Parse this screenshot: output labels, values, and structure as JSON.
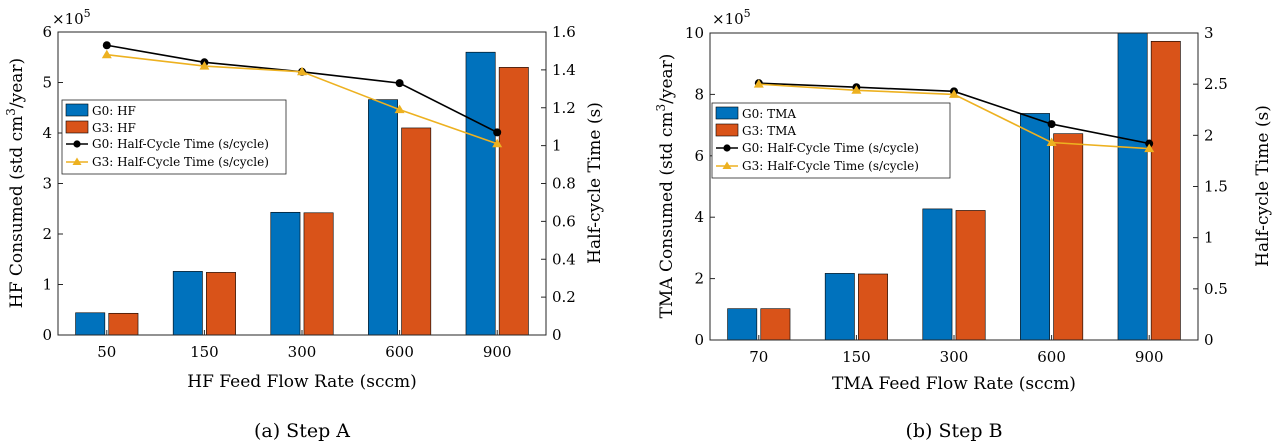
{
  "figure": {
    "colors": {
      "g0_bar": "#0072BD",
      "g3_bar": "#D95319",
      "g0_line": "#000000",
      "g3_line": "#EDB120"
    }
  },
  "chart_data": [
    {
      "type": "bar",
      "caption": "(a) Step A",
      "xlabel": "HF Feed Flow Rate (sccm)",
      "ylabel": "HF Consumed (std cm³/year)",
      "ylabel_parts": [
        "HF Consumed (std cm",
        "3",
        "/year)"
      ],
      "y_multiplier": "×10",
      "y_multiplier_exp": "5",
      "y2label": "Half-cycle Time (s)",
      "categories": [
        "50",
        "150",
        "300",
        "600",
        "900"
      ],
      "ylim": [
        0,
        6
      ],
      "yticks": [
        "0",
        "1",
        "2",
        "3",
        "4",
        "5",
        "6"
      ],
      "y2lim": [
        0,
        1.6
      ],
      "y2ticks": [
        "0",
        "0.2",
        "0.4",
        "0.6",
        "0.8",
        "1",
        "1.2",
        "1.4",
        "1.6"
      ],
      "legend_position": "center-left",
      "series": [
        {
          "name": "G0: HF",
          "kind": "bar",
          "axis": "left",
          "values": [
            0.44,
            1.26,
            2.43,
            4.66,
            5.6
          ]
        },
        {
          "name": "G3: HF",
          "kind": "bar",
          "axis": "left",
          "values": [
            0.43,
            1.24,
            2.42,
            4.1,
            5.3
          ]
        },
        {
          "name": "G0: Half-Cycle Time (s/cycle)",
          "kind": "line",
          "marker": "circle",
          "axis": "right",
          "values": [
            1.53,
            1.44,
            1.39,
            1.33,
            1.07
          ]
        },
        {
          "name": "G3: Half-Cycle Time (s/cycle)",
          "kind": "line",
          "marker": "triangle",
          "axis": "right",
          "values": [
            1.48,
            1.42,
            1.39,
            1.19,
            1.01
          ]
        }
      ]
    },
    {
      "type": "bar",
      "caption": "(b) Step B",
      "xlabel": "TMA Feed Flow Rate (sccm)",
      "ylabel": "TMA Consumed (std cm³/year)",
      "ylabel_parts": [
        "TMA Consumed (std cm",
        "3",
        "/year)"
      ],
      "y_multiplier": "×10",
      "y_multiplier_exp": "5",
      "y2label": "Half-cycle Time (s)",
      "categories": [
        "70",
        "150",
        "300",
        "600",
        "900"
      ],
      "ylim": [
        0,
        10
      ],
      "yticks": [
        "0",
        "2",
        "4",
        "6",
        "8",
        "10"
      ],
      "y2lim": [
        0,
        3
      ],
      "y2ticks": [
        "0",
        "0.5",
        "1",
        "1.5",
        "2",
        "2.5",
        "3"
      ],
      "legend_position": "center-left",
      "series": [
        {
          "name": "G0: TMA",
          "kind": "bar",
          "axis": "left",
          "values": [
            1.02,
            2.17,
            4.27,
            7.38,
            10.0
          ]
        },
        {
          "name": "G3: TMA",
          "kind": "bar",
          "axis": "left",
          "values": [
            1.02,
            2.15,
            4.22,
            6.72,
            9.73
          ]
        },
        {
          "name": "G0: Half-Cycle Time (s/cycle)",
          "kind": "line",
          "marker": "circle",
          "axis": "right",
          "values": [
            2.51,
            2.47,
            2.43,
            2.11,
            1.92
          ]
        },
        {
          "name": "G3: Half-Cycle Time (s/cycle)",
          "kind": "line",
          "marker": "triangle",
          "axis": "right",
          "values": [
            2.5,
            2.44,
            2.4,
            1.93,
            1.87
          ]
        }
      ]
    }
  ]
}
